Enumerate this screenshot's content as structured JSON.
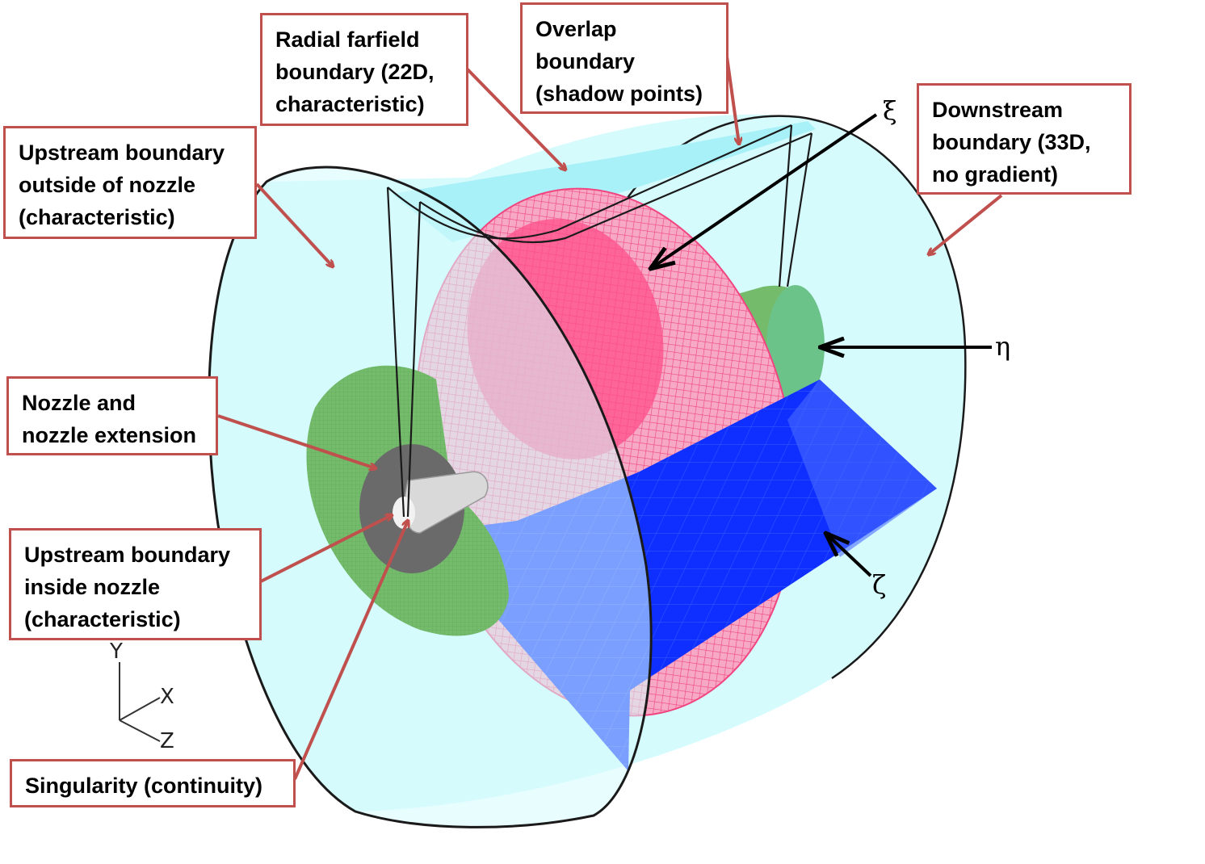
{
  "callouts": {
    "radial_farfield": [
      "Radial farfield",
      "boundary (22D,",
      "characteristic)"
    ],
    "overlap": [
      "Overlap",
      "boundary",
      "(shadow points)"
    ],
    "downstream": [
      "Downstream",
      "boundary  (33D,",
      "no gradient)"
    ],
    "upstream_outside": [
      "Upstream boundary",
      "outside of nozzle",
      "(characteristic)"
    ],
    "nozzle": [
      "Nozzle and",
      "nozzle extension"
    ],
    "upstream_inside": [
      "Upstream boundary",
      "inside nozzle",
      "(characteristic)"
    ],
    "singularity": [
      "Singularity (continuity)"
    ]
  },
  "grid_directions": {
    "xi": "ξ",
    "eta": "η",
    "zeta": "ζ"
  },
  "axes": {
    "y": "Y",
    "x": "X",
    "z": "Z"
  },
  "colors": {
    "domain_fill": "#d6fbfd",
    "radial_grid": "#f0457f",
    "nozzle_extension": "#74bb6c",
    "wall_grid": "#0018e8",
    "nozzle": "#bdbdbd",
    "callout_border": "#c0504d"
  }
}
